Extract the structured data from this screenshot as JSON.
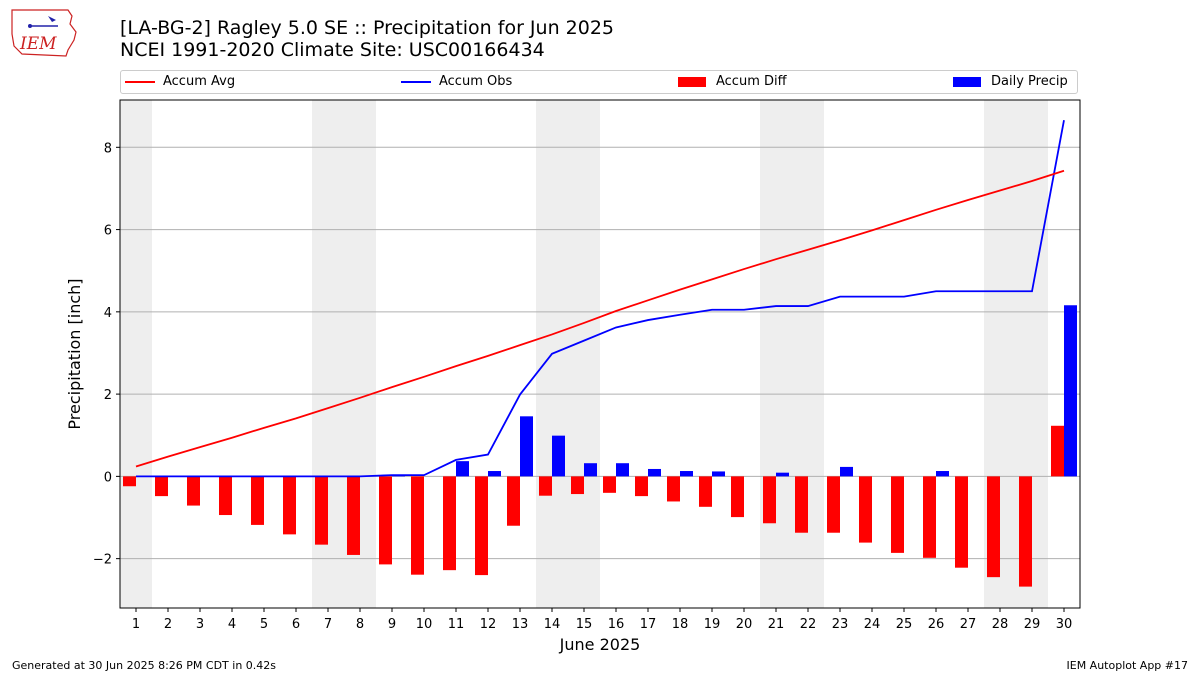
{
  "header": {
    "title_line1": "[LA-BG-2] Ragley 5.0 SE :: Precipitation for Jun 2025",
    "title_line2": "NCEI 1991-2020 Climate Site: USC00166434",
    "logo_text": "IEM"
  },
  "legend": {
    "items": [
      {
        "label": "Accum Avg",
        "kind": "line",
        "color": "#ff0000"
      },
      {
        "label": "Accum Obs",
        "kind": "line",
        "color": "#0000ff"
      },
      {
        "label": "Accum Diff",
        "kind": "bar",
        "color": "#ff0000"
      },
      {
        "label": "Daily Precip",
        "kind": "bar",
        "color": "#0000ff"
      }
    ]
  },
  "footer": {
    "left": "Generated at 30 Jun 2025 8:26 PM CDT in 0.42s",
    "right": "IEM Autoplot App #17"
  },
  "chart_data": {
    "type": "bar",
    "xlabel": "June 2025",
    "ylabel": "Precipitation [inch]",
    "ylim": [
      -3.2,
      9.15
    ],
    "yticks": [
      -2,
      0,
      2,
      4,
      6,
      8
    ],
    "grid": "horizontal",
    "legend_position": "top",
    "weekend_shading_days": [
      1,
      7,
      8,
      14,
      15,
      21,
      22,
      28,
      29
    ],
    "x": [
      1,
      2,
      3,
      4,
      5,
      6,
      7,
      8,
      9,
      10,
      11,
      12,
      13,
      14,
      15,
      16,
      17,
      18,
      19,
      20,
      21,
      22,
      23,
      24,
      25,
      26,
      27,
      28,
      29,
      30
    ],
    "series": [
      {
        "name": "Accum Avg",
        "kind": "line",
        "color": "#ff0000",
        "values": [
          0.24,
          0.48,
          0.71,
          0.94,
          1.18,
          1.41,
          1.66,
          1.91,
          2.17,
          2.42,
          2.68,
          2.93,
          3.19,
          3.45,
          3.73,
          4.02,
          4.28,
          4.54,
          4.79,
          5.04,
          5.28,
          5.51,
          5.74,
          5.98,
          6.23,
          6.48,
          6.72,
          6.95,
          7.18,
          7.43
        ]
      },
      {
        "name": "Accum Obs",
        "kind": "line",
        "color": "#0000ff",
        "values": [
          0,
          0,
          0,
          0,
          0,
          0,
          0,
          0,
          0.03,
          0.03,
          0.4,
          0.53,
          1.99,
          2.98,
          3.3,
          3.62,
          3.8,
          3.93,
          4.05,
          4.05,
          4.14,
          4.14,
          4.37,
          4.37,
          4.37,
          4.5,
          4.5,
          4.5,
          4.5,
          8.66
        ]
      },
      {
        "name": "Accum Diff",
        "kind": "bar",
        "color": "#ff0000",
        "values": [
          -0.24,
          -0.48,
          -0.71,
          -0.94,
          -1.18,
          -1.41,
          -1.66,
          -1.91,
          -2.14,
          -2.39,
          -2.28,
          -2.4,
          -1.2,
          -0.47,
          -0.43,
          -0.4,
          -0.48,
          -0.61,
          -0.74,
          -0.99,
          -1.14,
          -1.37,
          -1.37,
          -1.61,
          -1.86,
          -1.98,
          -2.22,
          -2.45,
          -2.68,
          1.23
        ]
      },
      {
        "name": "Daily Precip",
        "kind": "bar",
        "color": "#0000ff",
        "values": [
          0,
          0,
          0,
          0,
          0,
          0,
          0,
          0,
          0.03,
          0,
          0.37,
          0.13,
          1.46,
          0.99,
          0.32,
          0.32,
          0.18,
          0.13,
          0.12,
          0,
          0.09,
          0,
          0.23,
          0,
          0,
          0.13,
          0,
          0,
          0,
          4.16
        ]
      }
    ]
  }
}
